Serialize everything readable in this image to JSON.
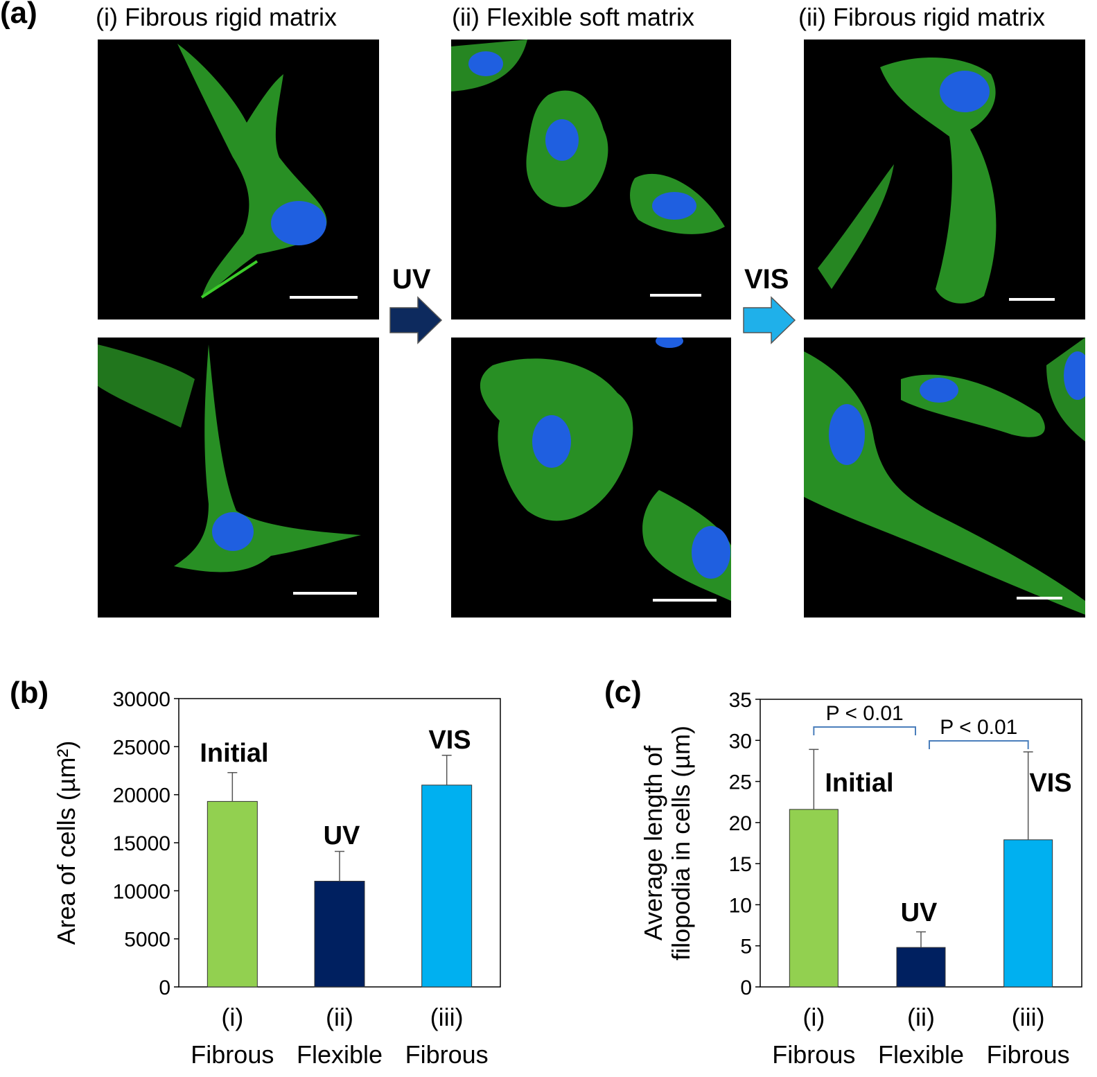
{
  "panel_a": {
    "letter": "(a)",
    "captions": [
      "(i) Fibrous rigid matrix",
      "(ii) Flexible soft matrix",
      "(ii) Fibrous rigid matrix"
    ],
    "step_labels": {
      "uv": "UV",
      "vis": "VIS"
    },
    "colors": {
      "uv_arrow": "#0d2a5e",
      "vis_arrow": "#1fb0ea",
      "actin": "#3ccc2a",
      "nucleus": "#1f5fe0"
    }
  },
  "chart_data": [
    {
      "type": "bar",
      "letter": "(b)",
      "categories": [
        "(i)",
        "(ii)",
        "(iii)"
      ],
      "category_sublabels": [
        "Fibrous",
        "Flexible",
        "Fibrous"
      ],
      "values": [
        19300,
        11000,
        21000
      ],
      "errors": [
        3000,
        3100,
        3100
      ],
      "bar_labels": [
        "Initial",
        "UV",
        "VIS"
      ],
      "colors": [
        "#92d050",
        "#002060",
        "#00b0f0"
      ],
      "ylabel": "Area of cells (µm²)",
      "ylim": [
        0,
        30000
      ],
      "yticks": [
        "0",
        "5000",
        "10000",
        "15000",
        "20000",
        "25000",
        "30000"
      ],
      "grid": false
    },
    {
      "type": "bar",
      "letter": "(c)",
      "categories": [
        "(i)",
        "(ii)",
        "(iii)"
      ],
      "category_sublabels": [
        "Fibrous",
        "Flexible",
        "Fibrous"
      ],
      "values": [
        21.6,
        4.8,
        17.9
      ],
      "errors": [
        7.3,
        1.9,
        10.7
      ],
      "bar_labels": [
        "Initial",
        "UV",
        "VIS"
      ],
      "colors": [
        "#92d050",
        "#002060",
        "#00b0f0"
      ],
      "ylabel_lines": [
        "Average length of",
        "filopodia in cells (µm)"
      ],
      "ylim": [
        0,
        35
      ],
      "yticks": [
        "0",
        "5",
        "10",
        "15",
        "20",
        "25",
        "30",
        "35"
      ],
      "significance": [
        "P < 0.01",
        "P < 0.01"
      ],
      "grid": false
    }
  ]
}
